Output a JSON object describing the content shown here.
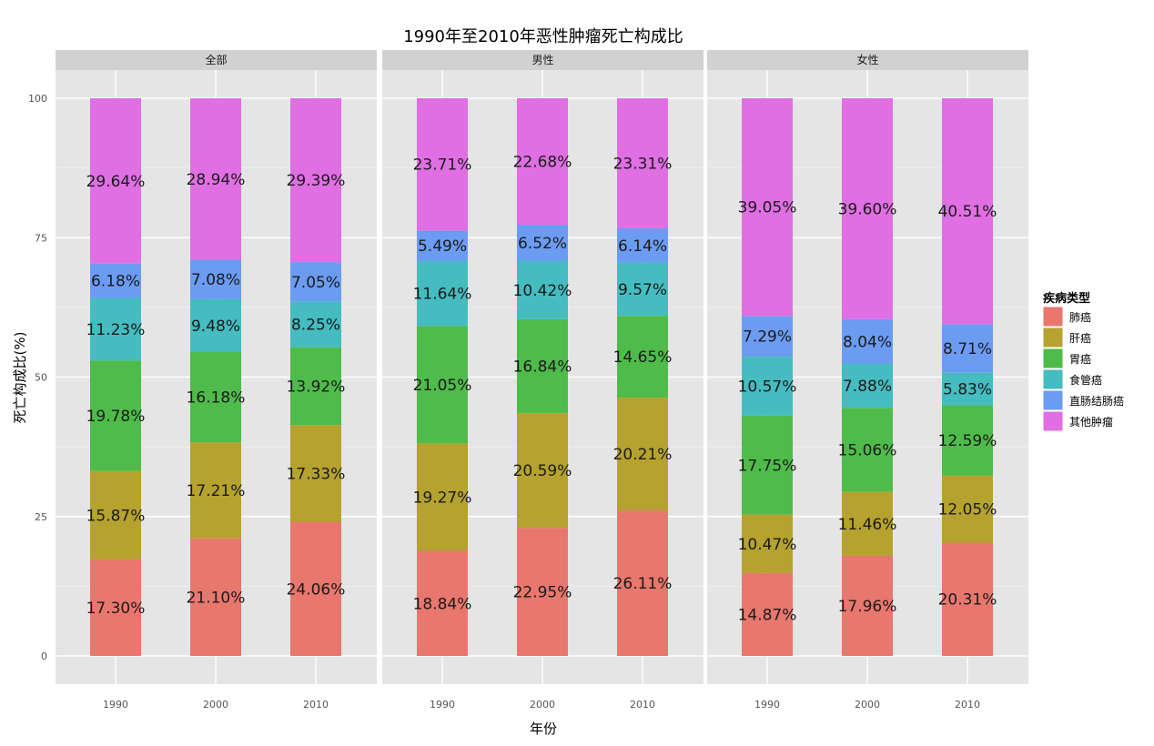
{
  "chart_data": {
    "type": "bar",
    "stacked": true,
    "title": "1990年至2010年恶性肿瘤死亡构成比",
    "xlabel": "年份",
    "ylabel": "死亡构成比(%)",
    "ylim": [
      0,
      100
    ],
    "yticks": [
      0,
      25,
      50,
      75,
      100
    ],
    "categories": [
      "1990",
      "2000",
      "2010"
    ],
    "legend": {
      "title": "疾病类型",
      "position": "right",
      "entries": [
        "肺癌",
        "肝癌",
        "胃癌",
        "食管癌",
        "直肠结肠癌",
        "其他肿瘤"
      ]
    },
    "colors": [
      "#e8776e",
      "#b5a22f",
      "#4fbb4a",
      "#45bcc0",
      "#6b9cf2",
      "#df6fe3"
    ],
    "panels": [
      {
        "name": "全部",
        "series": [
          {
            "name": "肺癌",
            "values": [
              17.3,
              21.1,
              24.06
            ],
            "labels": [
              "17.30%",
              "21.10%",
              "24.06%"
            ]
          },
          {
            "name": "肝癌",
            "values": [
              15.87,
              17.21,
              17.33
            ],
            "labels": [
              "15.87%",
              "17.21%",
              "17.33%"
            ]
          },
          {
            "name": "胃癌",
            "values": [
              19.78,
              16.18,
              13.92
            ],
            "labels": [
              "19.78%",
              "16.18%",
              "13.92%"
            ]
          },
          {
            "name": "食管癌",
            "values": [
              11.23,
              9.48,
              8.25
            ],
            "labels": [
              "11.23%",
              "9.48%",
              "8.25%"
            ]
          },
          {
            "name": "直肠结肠癌",
            "values": [
              6.18,
              7.08,
              7.05
            ],
            "labels": [
              "6.18%",
              "7.08%",
              "7.05%"
            ]
          },
          {
            "name": "其他肿瘤",
            "values": [
              29.64,
              28.94,
              29.39
            ],
            "labels": [
              "29.64%",
              "28.94%",
              "29.39%"
            ]
          }
        ]
      },
      {
        "name": "男性",
        "series": [
          {
            "name": "肺癌",
            "values": [
              18.84,
              22.95,
              26.11
            ],
            "labels": [
              "18.84%",
              "22.95%",
              "26.11%"
            ]
          },
          {
            "name": "肝癌",
            "values": [
              19.27,
              20.59,
              20.21
            ],
            "labels": [
              "19.27%",
              "20.59%",
              "20.21%"
            ]
          },
          {
            "name": "胃癌",
            "values": [
              21.05,
              16.84,
              14.65
            ],
            "labels": [
              "21.05%",
              "16.84%",
              "14.65%"
            ]
          },
          {
            "name": "食管癌",
            "values": [
              11.64,
              10.42,
              9.57
            ],
            "labels": [
              "11.64%",
              "10.42%",
              "9.57%"
            ]
          },
          {
            "name": "直肠结肠癌",
            "values": [
              5.49,
              6.52,
              6.14
            ],
            "labels": [
              "5.49%",
              "6.52%",
              "6.14%"
            ]
          },
          {
            "name": "其他肿瘤",
            "values": [
              23.71,
              22.68,
              23.31
            ],
            "labels": [
              "23.71%",
              "22.68%",
              "23.31%"
            ]
          }
        ]
      },
      {
        "name": "女性",
        "series": [
          {
            "name": "肺癌",
            "values": [
              14.87,
              17.96,
              20.31
            ],
            "labels": [
              "14.87%",
              "17.96%",
              "20.31%"
            ]
          },
          {
            "name": "肝癌",
            "values": [
              10.47,
              11.46,
              12.05
            ],
            "labels": [
              "10.47%",
              "11.46%",
              "12.05%"
            ]
          },
          {
            "name": "胃癌",
            "values": [
              17.75,
              15.06,
              12.59
            ],
            "labels": [
              "17.75%",
              "15.06%",
              "12.59%"
            ]
          },
          {
            "name": "食管癌",
            "values": [
              10.57,
              7.88,
              5.83
            ],
            "labels": [
              "10.57%",
              "7.88%",
              "5.83%"
            ]
          },
          {
            "name": "直肠结肠癌",
            "values": [
              7.29,
              8.04,
              8.71
            ],
            "labels": [
              "7.29%",
              "8.04%",
              "8.71%"
            ]
          },
          {
            "name": "其他肿瘤",
            "values": [
              39.05,
              39.6,
              40.51
            ],
            "labels": [
              "39.05%",
              "39.60%",
              "40.51%"
            ]
          }
        ]
      }
    ]
  }
}
